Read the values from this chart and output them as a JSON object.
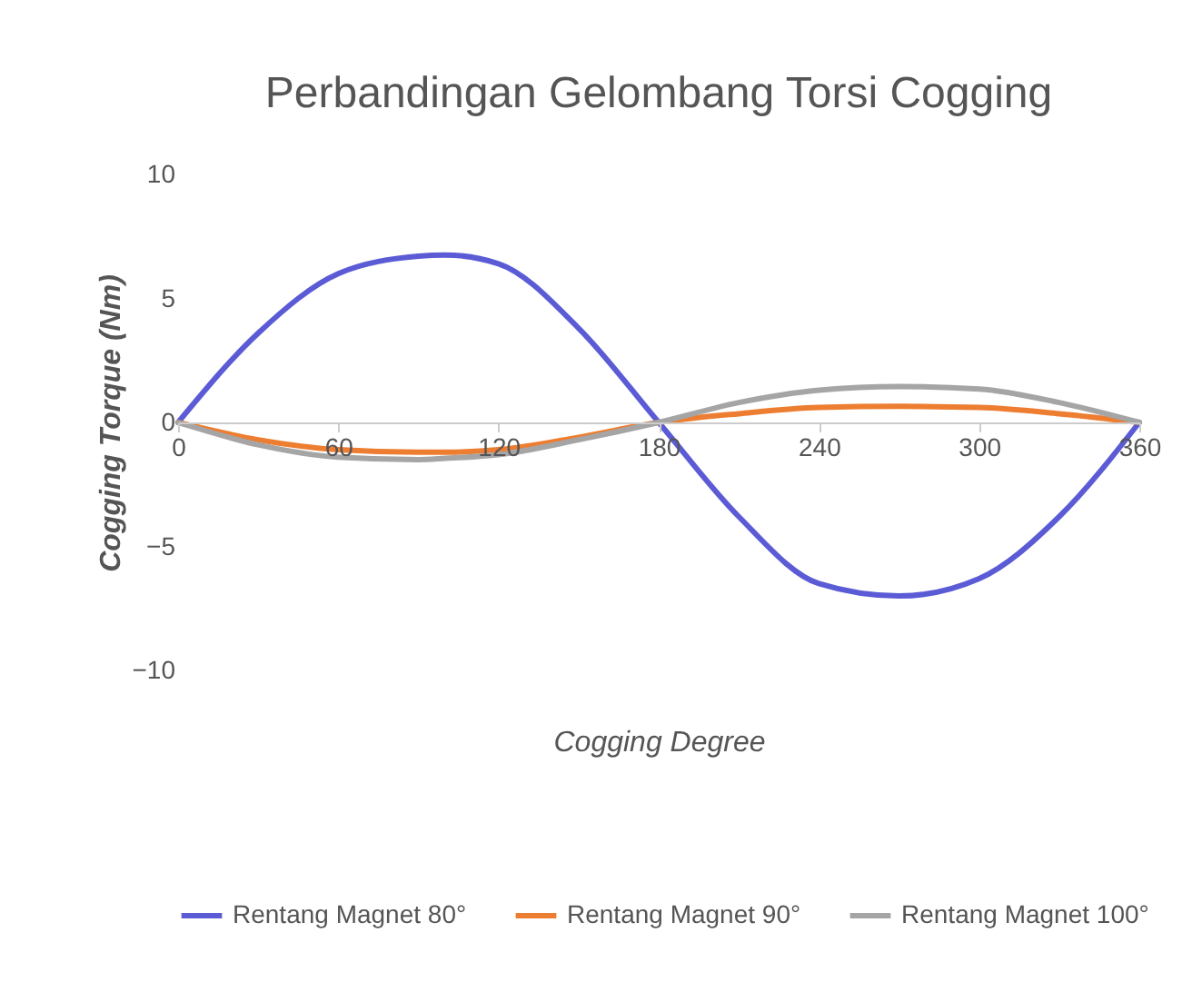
{
  "chart_data": {
    "type": "line",
    "title": "Perbandingan Gelombang Torsi Cogging",
    "xlabel": "Cogging Degree",
    "ylabel": "Cogging Torque (Nm)",
    "x": [
      0,
      30,
      60,
      90,
      100,
      120,
      150,
      180,
      210,
      240,
      270,
      300,
      330,
      360
    ],
    "series": [
      {
        "name": "Rentang Magnet 80°",
        "color": "#5b5bd6",
        "values": [
          0,
          3.6,
          6.0,
          6.7,
          6.75,
          6.4,
          3.8,
          0,
          -3.8,
          -6.5,
          -7.0,
          -6.3,
          -3.8,
          0
        ]
      },
      {
        "name": "Rentang Magnet 90°",
        "color": "#ed7d31",
        "values": [
          0,
          -0.7,
          -1.1,
          -1.2,
          -1.2,
          -1.1,
          -0.6,
          0,
          0.35,
          0.6,
          0.65,
          0.6,
          0.35,
          0
        ]
      },
      {
        "name": "Rentang Magnet 100°",
        "color": "#a5a5a5",
        "values": [
          0,
          -0.9,
          -1.4,
          -1.5,
          -1.45,
          -1.3,
          -0.7,
          0,
          0.8,
          1.3,
          1.45,
          1.35,
          0.8,
          0
        ]
      }
    ],
    "xlim": [
      0,
      360
    ],
    "xticks": [
      0,
      60,
      120,
      180,
      240,
      300,
      360
    ],
    "ylim": [
      -10,
      10
    ],
    "yticks": [
      -10,
      -5,
      0,
      5,
      10
    ],
    "grid": false,
    "legend": "bottom",
    "marker": "none",
    "line_style": "solid"
  }
}
